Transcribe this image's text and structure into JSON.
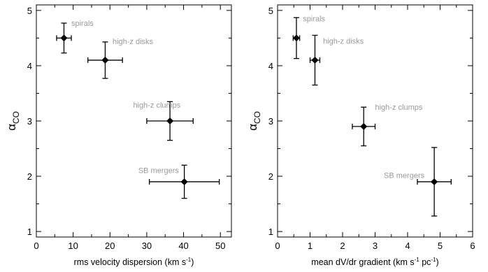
{
  "colors": {
    "annotation": "#999999",
    "marker": "#000000",
    "frame": "#000000"
  },
  "chart_data": [
    {
      "type": "scatter",
      "x_label_prefix": "rms velocity dispersion (km s",
      "x_label_sup": "-1",
      "x_label_suffix": ")",
      "y_label_main": "α",
      "y_label_sub": "CO",
      "xlim": [
        0,
        53
      ],
      "ylim": [
        0.9,
        5.1
      ],
      "xticks": [
        0,
        10,
        20,
        30,
        40,
        50
      ],
      "yticks": [
        1,
        2,
        3,
        4,
        5
      ],
      "grid": false,
      "points": [
        {
          "label": "spirals",
          "x": 7.5,
          "y": 4.5,
          "x_err_low": 2,
          "x_err_high": 2,
          "y_err_low": 0.27,
          "y_err_high": 0.27,
          "label_dx": 2.0,
          "label_dy": 0.22
        },
        {
          "label": "high-z disks",
          "x": 18.7,
          "y": 4.1,
          "x_err_low": 4.7,
          "x_err_high": 4.7,
          "y_err_low": 0.33,
          "y_err_high": 0.33,
          "label_dx": 2.0,
          "label_dy": 0.29
        },
        {
          "label": "high-z clumps",
          "x": 36.3,
          "y": 3.0,
          "x_err_low": 6.3,
          "x_err_high": 6.3,
          "y_err_low": 0.35,
          "y_err_high": 0.35,
          "label_dx": -10.0,
          "label_dy": 0.24
        },
        {
          "label": "SB mergers",
          "x": 40.2,
          "y": 1.9,
          "x_err_low": 9.5,
          "x_err_high": 9.5,
          "y_err_low": 0.3,
          "y_err_high": 0.3,
          "label_dx": -12.5,
          "label_dy": 0.16
        }
      ]
    },
    {
      "type": "scatter",
      "x_label_prefix": "mean dV/dr gradient (km s",
      "x_label_sup": "-1",
      "x_label_mid": " pc",
      "x_label_sup2": "-1",
      "x_label_suffix": ")",
      "y_label_main": "α",
      "y_label_sub": "CO",
      "xlim": [
        0,
        6
      ],
      "ylim": [
        0.9,
        5.1
      ],
      "xticks": [
        0,
        1,
        2,
        3,
        4,
        5,
        6
      ],
      "yticks": [
        1,
        2,
        3,
        4,
        5
      ],
      "grid": false,
      "points": [
        {
          "label": "spirals",
          "x": 0.58,
          "y": 4.5,
          "x_err_low": 0.1,
          "x_err_high": 0.1,
          "y_err_low": 0.37,
          "y_err_high": 0.37,
          "label_dx": 0.2,
          "label_dy": 0.3
        },
        {
          "label": "high-z disks",
          "x": 1.15,
          "y": 4.1,
          "x_err_low": 0.15,
          "x_err_high": 0.15,
          "y_err_low": 0.45,
          "y_err_high": 0.45,
          "label_dx": 0.25,
          "label_dy": 0.3
        },
        {
          "label": "high-z clumps",
          "x": 2.65,
          "y": 2.9,
          "x_err_low": 0.35,
          "x_err_high": 0.35,
          "y_err_low": 0.35,
          "y_err_high": 0.35,
          "label_dx": 0.35,
          "label_dy": 0.3
        },
        {
          "label": "SB mergers",
          "x": 4.82,
          "y": 1.9,
          "x_err_low": 0.52,
          "x_err_high": 0.52,
          "y_err_low": 0.62,
          "y_err_high": 0.62,
          "label_dx": -1.55,
          "label_dy": 0.07
        }
      ]
    }
  ]
}
